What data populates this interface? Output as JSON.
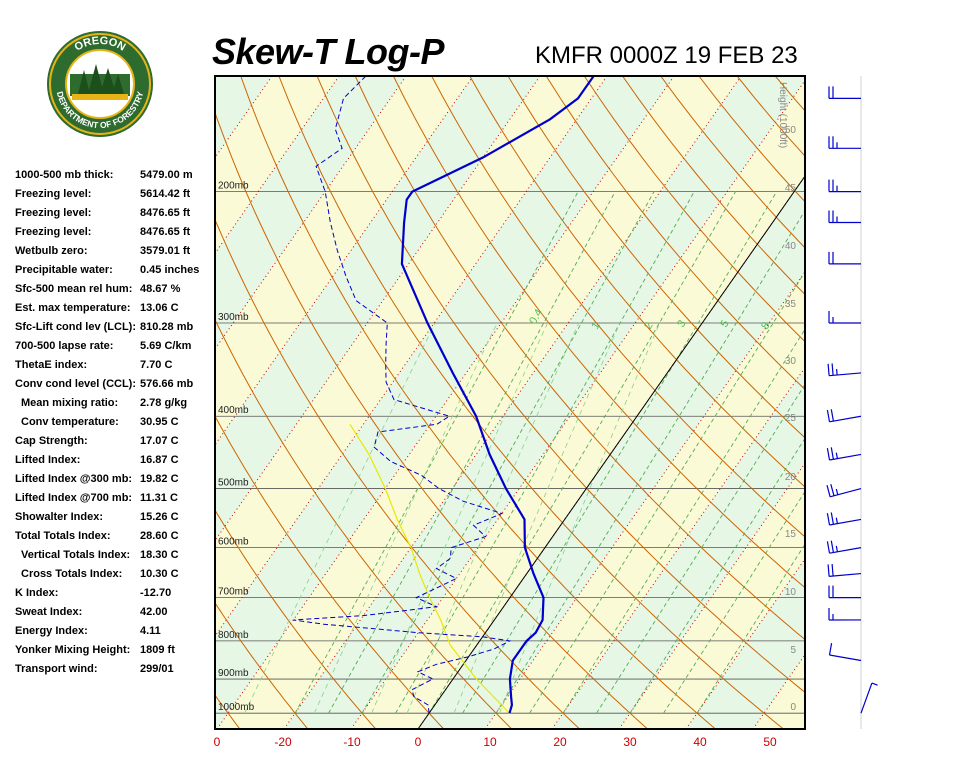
{
  "title": "Skew-T Log-P",
  "station": "KMFR 0000Z 19 FEB 23",
  "logo": {
    "top_text": "OREGON",
    "bottom_text": "DEPARTMENT OF FORESTRY",
    "colors": {
      "green": "#2e6b2e",
      "gold": "#e7b417"
    }
  },
  "indices": [
    {
      "label": "1000-500 mb thick:",
      "value": "5479.00 m",
      "indent": false
    },
    {
      "label": "Freezing level:",
      "value": "5614.42 ft",
      "indent": false
    },
    {
      "label": "Freezing level:",
      "value": "8476.65 ft",
      "indent": false
    },
    {
      "label": "Freezing level:",
      "value": "8476.65 ft",
      "indent": false
    },
    {
      "label": "Wetbulb zero:",
      "value": "3579.01 ft",
      "indent": false
    },
    {
      "label": "Precipitable water:",
      "value": "0.45 inches",
      "indent": false
    },
    {
      "label": "Sfc-500 mean rel hum:",
      "value": "48.67 %",
      "indent": false
    },
    {
      "label": "Est. max temperature:",
      "value": "13.06 C",
      "indent": false
    },
    {
      "label": "Sfc-Lift cond lev (LCL):",
      "value": "810.28 mb",
      "indent": false
    },
    {
      "label": "700-500 lapse rate:",
      "value": "5.69 C/km",
      "indent": false
    },
    {
      "label": "ThetaE index:",
      "value": "7.70 C",
      "indent": false
    },
    {
      "label": "Conv cond level (CCL):",
      "value": "576.66 mb",
      "indent": false
    },
    {
      "label": "Mean mixing ratio:",
      "value": "2.78 g/kg",
      "indent": true
    },
    {
      "label": "Conv temperature:",
      "value": "30.95 C",
      "indent": true
    },
    {
      "label": "Cap Strength:",
      "value": "17.07 C",
      "indent": false
    },
    {
      "label": "Lifted Index:",
      "value": "16.87 C",
      "indent": false
    },
    {
      "label": "Lifted Index @300 mb:",
      "value": "19.82 C",
      "indent": false
    },
    {
      "label": "Lifted Index @700 mb:",
      "value": "11.31 C",
      "indent": false
    },
    {
      "label": "Showalter Index:",
      "value": "15.26 C",
      "indent": false
    },
    {
      "label": "Total Totals Index:",
      "value": "28.60 C",
      "indent": false
    },
    {
      "label": "Vertical Totals Index:",
      "value": "18.30 C",
      "indent": true
    },
    {
      "label": "Cross Totals Index:",
      "value": "10.30 C",
      "indent": true
    },
    {
      "label": "K Index:",
      "value": "-12.70",
      "indent": false
    },
    {
      "label": "Sweat Index:",
      "value": "42.00",
      "indent": false
    },
    {
      "label": "Energy Index:",
      "value": "4.11",
      "indent": false
    },
    {
      "label": "Yonker Mixing Height:",
      "value": "1809 ft",
      "indent": false
    },
    {
      "label": "Transport wind:",
      "value": "299/01",
      "indent": false
    }
  ],
  "chart_data": {
    "type": "skew-t log-p",
    "x_tick_labels": [
      "0",
      "-20",
      "-10",
      "0",
      "10",
      "20",
      "30",
      "40",
      "50"
    ],
    "xlabel_unit": "C",
    "pressure_labels": [
      "200mb",
      "300mb",
      "400mb",
      "500mb",
      "600mb",
      "700mb",
      "800mb",
      "900mb",
      "1000mb"
    ],
    "height_axis_label": "Height (1000ft)",
    "height_ticks": [
      "50",
      "45",
      "40",
      "35",
      "30",
      "25",
      "20",
      "15",
      "10",
      "5",
      "0"
    ],
    "mixing_ratio_labels": [
      "0.4",
      "1",
      "2",
      "3",
      "5",
      "8"
    ],
    "colors": {
      "temperature": "#0000cc",
      "dewpoint": "#0000cc",
      "parcel": "#e8e800",
      "dry_adiabats": "#cc6600",
      "moist_adiabats": "#55aa55",
      "isotherms_dotted": "#cc0000",
      "isobars": "#555555",
      "background_bands": [
        "#e6f7e6",
        "#fafad6"
      ]
    },
    "temperature_profile": [
      {
        "p": 1000,
        "t": 12
      },
      {
        "p": 975,
        "t": 11.5
      },
      {
        "p": 950,
        "t": 10.5
      },
      {
        "p": 900,
        "t": 8.5
      },
      {
        "p": 850,
        "t": 7
      },
      {
        "p": 820,
        "t": 7
      },
      {
        "p": 800,
        "t": 7
      },
      {
        "p": 780,
        "t": 7.5
      },
      {
        "p": 750,
        "t": 7.2
      },
      {
        "p": 700,
        "t": 5
      },
      {
        "p": 650,
        "t": 1
      },
      {
        "p": 600,
        "t": -3
      },
      {
        "p": 550,
        "t": -6
      },
      {
        "p": 500,
        "t": -12
      },
      {
        "p": 450,
        "t": -18
      },
      {
        "p": 400,
        "t": -24
      },
      {
        "p": 350,
        "t": -32
      },
      {
        "p": 300,
        "t": -41
      },
      {
        "p": 250,
        "t": -51
      },
      {
        "p": 220,
        "t": -55
      },
      {
        "p": 205,
        "t": -57
      },
      {
        "p": 200,
        "t": -57
      },
      {
        "p": 180,
        "t": -50
      },
      {
        "p": 160,
        "t": -44
      },
      {
        "p": 150,
        "t": -42
      },
      {
        "p": 140,
        "t": -42
      }
    ],
    "dewpoint_profile": [
      {
        "p": 1000,
        "t": 0
      },
      {
        "p": 975,
        "t": -1
      },
      {
        "p": 950,
        "t": -4
      },
      {
        "p": 930,
        "t": -5
      },
      {
        "p": 900,
        "t": -3
      },
      {
        "p": 880,
        "t": -6
      },
      {
        "p": 860,
        "t": -4
      },
      {
        "p": 840,
        "t": 0
      },
      {
        "p": 820,
        "t": 3
      },
      {
        "p": 800,
        "t": 4.5
      },
      {
        "p": 790,
        "t": 0
      },
      {
        "p": 780,
        "t": -10
      },
      {
        "p": 760,
        "t": -25
      },
      {
        "p": 750,
        "t": -30
      },
      {
        "p": 740,
        "t": -20
      },
      {
        "p": 730,
        "t": -15
      },
      {
        "p": 720,
        "t": -10
      },
      {
        "p": 700,
        "t": -14
      },
      {
        "p": 680,
        "t": -12
      },
      {
        "p": 660,
        "t": -10
      },
      {
        "p": 640,
        "t": -14
      },
      {
        "p": 620,
        "t": -13
      },
      {
        "p": 600,
        "t": -14
      },
      {
        "p": 580,
        "t": -10
      },
      {
        "p": 560,
        "t": -13
      },
      {
        "p": 540,
        "t": -10
      },
      {
        "p": 520,
        "t": -17
      },
      {
        "p": 500,
        "t": -22
      },
      {
        "p": 480,
        "t": -26
      },
      {
        "p": 460,
        "t": -32
      },
      {
        "p": 440,
        "t": -36
      },
      {
        "p": 420,
        "t": -37
      },
      {
        "p": 410,
        "t": -29
      },
      {
        "p": 400,
        "t": -28
      },
      {
        "p": 380,
        "t": -38
      },
      {
        "p": 360,
        "t": -41
      },
      {
        "p": 340,
        "t": -43
      },
      {
        "p": 320,
        "t": -45
      },
      {
        "p": 300,
        "t": -47
      },
      {
        "p": 280,
        "t": -54
      },
      {
        "p": 260,
        "t": -58
      },
      {
        "p": 240,
        "t": -62
      },
      {
        "p": 220,
        "t": -66
      },
      {
        "p": 200,
        "t": -70
      },
      {
        "p": 185,
        "t": -74
      },
      {
        "p": 175,
        "t": -72
      },
      {
        "p": 165,
        "t": -75
      },
      {
        "p": 150,
        "t": -77
      },
      {
        "p": 140,
        "t": -76
      }
    ],
    "parcel_profile": [
      {
        "p": 1000,
        "t": 12
      },
      {
        "p": 900,
        "t": 3.5
      },
      {
        "p": 810,
        "t": -4
      },
      {
        "p": 750,
        "t": -8
      },
      {
        "p": 700,
        "t": -12
      },
      {
        "p": 650,
        "t": -16
      },
      {
        "p": 600,
        "t": -20
      },
      {
        "p": 550,
        "t": -25
      },
      {
        "p": 500,
        "t": -30
      },
      {
        "p": 450,
        "t": -36
      },
      {
        "p": 410,
        "t": -42
      }
    ],
    "wind_barbs": [
      {
        "p": 1000,
        "dir": 20,
        "kt": 5
      },
      {
        "p": 850,
        "dir": 280,
        "kt": 10
      },
      {
        "p": 750,
        "dir": 270,
        "kt": 15
      },
      {
        "p": 700,
        "dir": 270,
        "kt": 20
      },
      {
        "p": 650,
        "dir": 265,
        "kt": 20
      },
      {
        "p": 600,
        "dir": 260,
        "kt": 25
      },
      {
        "p": 550,
        "dir": 260,
        "kt": 25
      },
      {
        "p": 500,
        "dir": 255,
        "kt": 25
      },
      {
        "p": 450,
        "dir": 260,
        "kt": 25
      },
      {
        "p": 400,
        "dir": 260,
        "kt": 20
      },
      {
        "p": 350,
        "dir": 265,
        "kt": 25
      },
      {
        "p": 300,
        "dir": 270,
        "kt": 15
      },
      {
        "p": 250,
        "dir": 270,
        "kt": 20
      },
      {
        "p": 220,
        "dir": 270,
        "kt": 25
      },
      {
        "p": 200,
        "dir": 270,
        "kt": 25
      },
      {
        "p": 175,
        "dir": 270,
        "kt": 25
      },
      {
        "p": 150,
        "dir": 270,
        "kt": 20
      }
    ]
  }
}
